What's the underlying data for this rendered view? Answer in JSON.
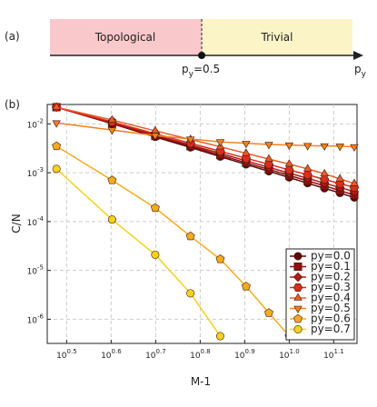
{
  "panel_a": {
    "label": "(a)",
    "left_region": "Topological",
    "right_region": "Trivial",
    "marker_label": "py=0.5",
    "axis_label": "py"
  },
  "chart_data": {
    "type": "line",
    "label": "(b)",
    "xlabel": "M-1",
    "ylabel": "C/N",
    "x": [
      3,
      4,
      5,
      6,
      7,
      8,
      9,
      10,
      11,
      12,
      13,
      14
    ],
    "xscale": "log",
    "yscale": "log",
    "grid": true,
    "legend": "lower right",
    "xlim": [
      2.86,
      14.2
    ],
    "xticks": [
      {
        "value": 3.162,
        "label": "10^0.5"
      },
      {
        "value": 3.981,
        "label": "10^0.6"
      },
      {
        "value": 5.012,
        "label": "10^0.7"
      },
      {
        "value": 6.31,
        "label": "10^0.8"
      },
      {
        "value": 7.943,
        "label": "10^0.9"
      },
      {
        "value": 10,
        "label": "10^1.0"
      },
      {
        "value": 12.589,
        "label": "10^1.1"
      }
    ],
    "ylim": [
      3.2e-07,
      0.025
    ],
    "yticks": [
      {
        "value": 1e-06,
        "label": "10^-6"
      },
      {
        "value": 1e-05,
        "label": "10^-5"
      },
      {
        "value": 0.0001,
        "label": "10^-4"
      },
      {
        "value": 0.001,
        "label": "10^-3"
      },
      {
        "value": 0.01,
        "label": "10^-2"
      }
    ],
    "series": [
      {
        "name": "py=0.0",
        "color": "#5c0a0a",
        "marker": "circle",
        "values": [
          0.022,
          0.0101,
          0.0054,
          0.0033,
          0.00214,
          0.00148,
          0.00107,
          0.0008,
          0.00061,
          0.00048,
          0.000385,
          0.00031
        ]
      },
      {
        "name": "py=0.1",
        "color": "#8e1010",
        "marker": "square",
        "values": [
          0.022,
          0.0103,
          0.0057,
          0.0035,
          0.0023,
          0.0016,
          0.00117,
          0.00088,
          0.00068,
          0.00054,
          0.00043,
          0.00035
        ]
      },
      {
        "name": "py=0.2",
        "color": "#b31818",
        "marker": "diamond",
        "values": [
          0.022,
          0.0106,
          0.0059,
          0.0037,
          0.0025,
          0.00175,
          0.00129,
          0.00098,
          0.00077,
          0.00061,
          0.0005,
          0.00041
        ]
      },
      {
        "name": "py=0.3",
        "color": "#d82e1c",
        "marker": "hexagon",
        "values": [
          0.022,
          0.011,
          0.0063,
          0.004,
          0.00275,
          0.00198,
          0.00149,
          0.00114,
          0.00091,
          0.00073,
          0.0006,
          0.0005
        ]
      },
      {
        "name": "py=0.4",
        "color": "#e85c2a",
        "marker": "triangle-up",
        "values": [
          0.022,
          0.012,
          0.0072,
          0.0048,
          0.0034,
          0.0025,
          0.0019,
          0.0015,
          0.0012,
          0.00095,
          0.00075,
          0.0006
        ]
      },
      {
        "name": "py=0.5",
        "color": "#f08220",
        "marker": "triangle-down",
        "values": [
          0.0105,
          0.0075,
          0.0058,
          0.0049,
          0.0043,
          0.004,
          0.0038,
          0.0037,
          0.0036,
          0.00355,
          0.0035,
          0.0034
        ]
      },
      {
        "name": "py=0.6",
        "color": "#f5ab1f",
        "marker": "pentagon",
        "values": [
          0.0035,
          0.0007,
          0.00019,
          5e-05,
          1.7e-05,
          4.7e-06,
          1.35e-06,
          4.5e-07,
          null,
          null,
          null,
          null
        ]
      },
      {
        "name": "py=0.7",
        "color": "#f5d21e",
        "marker": "circle",
        "values": [
          0.0012,
          0.00011,
          2.1e-05,
          3.4e-06,
          4.5e-07,
          null,
          null,
          null,
          null,
          null,
          null,
          null
        ]
      }
    ]
  }
}
